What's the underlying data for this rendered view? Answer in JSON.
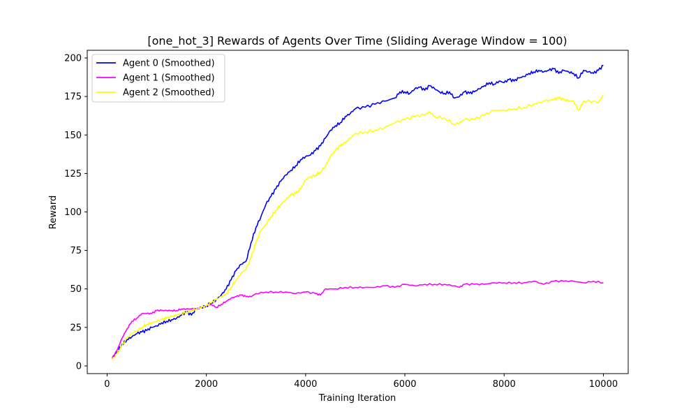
{
  "chart_data": {
    "type": "line",
    "title": "[one_hot_3] Rewards of Agents Over Time (Sliding Average Window = 100)",
    "xlabel": "Training Iteration",
    "ylabel": "Reward",
    "xlim": [
      -400,
      10500
    ],
    "ylim": [
      -5,
      205
    ],
    "xticks": [
      0,
      2000,
      4000,
      6000,
      8000,
      10000
    ],
    "yticks": [
      0,
      25,
      50,
      75,
      100,
      125,
      150,
      175,
      200
    ],
    "grid": false,
    "legend_position": "upper-left",
    "series": [
      {
        "name": "Agent 0 (Smoothed)",
        "color": "#0000ff",
        "x": [
          100,
          200,
          300,
          400,
          500,
          600,
          700,
          800,
          900,
          1000,
          1100,
          1200,
          1300,
          1400,
          1500,
          1600,
          1700,
          1800,
          1900,
          2000,
          2100,
          2200,
          2300,
          2400,
          2500,
          2600,
          2700,
          2800,
          2900,
          3000,
          3100,
          3200,
          3300,
          3400,
          3500,
          3600,
          3700,
          3800,
          3900,
          4000,
          4100,
          4200,
          4300,
          4400,
          4500,
          4600,
          4700,
          4800,
          4900,
          5000,
          5200,
          5400,
          5600,
          5800,
          5900,
          6000,
          6100,
          6200,
          6300,
          6400,
          6500,
          6600,
          6700,
          6800,
          6900,
          7000,
          7100,
          7200,
          7300,
          7400,
          7500,
          7600,
          7700,
          7800,
          7900,
          8000,
          8100,
          8200,
          8300,
          8400,
          8500,
          8600,
          8700,
          8800,
          8900,
          9000,
          9100,
          9200,
          9300,
          9400,
          9500,
          9600,
          9700,
          9800,
          9900,
          10000
        ],
        "values": [
          5,
          9,
          14,
          17,
          19,
          21,
          22,
          23,
          25,
          26,
          28,
          29,
          30,
          31,
          33,
          35,
          33,
          37,
          38,
          39,
          41,
          43,
          46,
          50,
          56,
          62,
          66,
          68,
          80,
          90,
          97,
          105,
          110,
          115,
          120,
          124,
          127,
          130,
          134,
          136,
          137,
          140,
          143,
          148,
          153,
          156,
          158,
          162,
          164,
          167,
          168,
          170,
          172,
          174,
          178,
          178,
          177,
          180,
          181,
          179,
          182,
          180,
          178,
          177,
          178,
          174,
          175,
          178,
          177,
          178,
          180,
          182,
          184,
          183,
          185,
          184,
          186,
          185,
          187,
          188,
          190,
          191,
          192,
          191,
          192,
          193,
          190,
          192,
          191,
          190,
          187,
          192,
          191,
          190,
          192,
          195
        ]
      },
      {
        "name": "Agent 1 (Smoothed)",
        "color": "#ff00ff",
        "x": [
          100,
          200,
          300,
          400,
          500,
          600,
          700,
          800,
          900,
          1000,
          1100,
          1200,
          1300,
          1400,
          1500,
          1600,
          1700,
          1800,
          1900,
          2000,
          2100,
          2200,
          2300,
          2400,
          2500,
          2600,
          2700,
          2800,
          2900,
          3000,
          3200,
          3400,
          3600,
          3800,
          4000,
          4200,
          4300,
          4400,
          4600,
          4800,
          5000,
          5200,
          5400,
          5600,
          5800,
          6000,
          6200,
          6400,
          6600,
          6800,
          7000,
          7100,
          7200,
          7400,
          7600,
          7800,
          8000,
          8200,
          8400,
          8600,
          8800,
          9000,
          9200,
          9400,
          9600,
          9800,
          10000
        ],
        "values": [
          5,
          10,
          18,
          24,
          29,
          31,
          34,
          34,
          34,
          36,
          36,
          36,
          36,
          36,
          37,
          37,
          37,
          37,
          38,
          39,
          40,
          38,
          40,
          42,
          44,
          45,
          46,
          45,
          45,
          47,
          48,
          48,
          48,
          47,
          48,
          47,
          46,
          50,
          50,
          51,
          51,
          51,
          51,
          52,
          51,
          53,
          52,
          53,
          53,
          53,
          52,
          51,
          53,
          53,
          53,
          54,
          54,
          54,
          54,
          55,
          53,
          55,
          55,
          55,
          54,
          55,
          54
        ]
      },
      {
        "name": "Agent 2 (Smoothed)",
        "color": "#ffff00",
        "x": [
          100,
          200,
          300,
          400,
          500,
          600,
          700,
          800,
          900,
          1000,
          1100,
          1200,
          1300,
          1400,
          1500,
          1600,
          1700,
          1800,
          1900,
          2000,
          2100,
          2200,
          2300,
          2400,
          2500,
          2600,
          2700,
          2800,
          2900,
          3000,
          3100,
          3200,
          3300,
          3400,
          3500,
          3600,
          3700,
          3800,
          3900,
          4000,
          4100,
          4200,
          4300,
          4400,
          4500,
          4600,
          4700,
          4800,
          4900,
          5000,
          5200,
          5400,
          5600,
          5800,
          6000,
          6200,
          6400,
          6500,
          6600,
          6800,
          7000,
          7100,
          7200,
          7400,
          7600,
          7800,
          8000,
          8200,
          8400,
          8600,
          8800,
          9000,
          9100,
          9200,
          9300,
          9400,
          9500,
          9600,
          9800,
          9900,
          10000
        ],
        "values": [
          4,
          8,
          13,
          18,
          21,
          23,
          25,
          27,
          28,
          29,
          30,
          31,
          32,
          33,
          34,
          35,
          36,
          37,
          38,
          39,
          41,
          43,
          45,
          47,
          51,
          56,
          60,
          63,
          70,
          80,
          88,
          92,
          97,
          101,
          105,
          108,
          111,
          112,
          115,
          121,
          123,
          124,
          126,
          130,
          136,
          140,
          143,
          145,
          148,
          151,
          152,
          153,
          155,
          158,
          160,
          162,
          163,
          165,
          162,
          161,
          157,
          158,
          160,
          160,
          163,
          166,
          166,
          167,
          168,
          170,
          172,
          173,
          174,
          173,
          172,
          172,
          166,
          172,
          172,
          171,
          176
        ]
      }
    ]
  }
}
